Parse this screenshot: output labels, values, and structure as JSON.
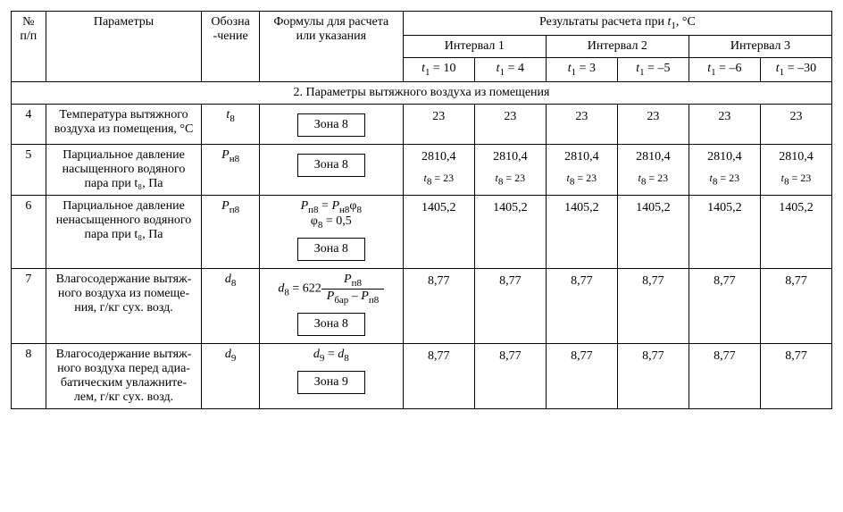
{
  "header": {
    "col_num": "№ п/п",
    "col_param": "Параметры",
    "col_symbol": "Обозна\n-чение",
    "col_formula": "Формулы для расчета или указания",
    "col_results_title": "Результаты расчета при t₁, °C",
    "intervals": [
      "Интервал 1",
      "Интервал 2",
      "Интервал 3"
    ],
    "t_labels": [
      "t₁ = 10",
      "t₁ = 4",
      "t₁ = 3",
      "t₁ = –5",
      "t₁ = –6",
      "t₁ = –30"
    ]
  },
  "section_title": "2. Параметры вытяжного воздуха из помещения",
  "zone_label": "Зона ",
  "rows": [
    {
      "n": "4",
      "param": "Температура вытяжного воздуха из помещения, °C",
      "symbol_html": "<i>t</i><span class=\"sub\">8</span>",
      "formula_text": "",
      "zone": "8",
      "values": [
        "23",
        "23",
        "23",
        "23",
        "23",
        "23"
      ],
      "sub_values": [
        "",
        "",
        "",
        "",
        "",
        ""
      ]
    },
    {
      "n": "5",
      "param": "Парциальное давление насыщенного водяного пара при t₈, Па",
      "symbol_html": "<i>P</i><span class=\"sub\">н8</span>",
      "formula_text": "",
      "zone": "8",
      "values": [
        "2810,4",
        "2810,4",
        "2810,4",
        "2810,4",
        "2810,4",
        "2810,4"
      ],
      "sub_values": [
        "t₈ = 23",
        "t₈ = 23",
        "t₈ = 23",
        "t₈ = 23",
        "t₈ = 23",
        "t₈ = 23"
      ]
    },
    {
      "n": "6",
      "param": "Парциальное давление ненасыщенного водяного пара при t₈, Па",
      "symbol_html": "<i>P</i><span class=\"sub\">п8</span>",
      "formula_text": "<i>P</i><span class=\"sub\">п8</span> = <i>P</i><span class=\"sub\">н8</span>φ<span class=\"sub\">8</span><br>φ<span class=\"sub\">8</span> = 0,5",
      "zone": "8",
      "values": [
        "1405,2",
        "1405,2",
        "1405,2",
        "1405,2",
        "1405,2",
        "1405,2"
      ],
      "sub_values": [
        "",
        "",
        "",
        "",
        "",
        ""
      ]
    },
    {
      "n": "7",
      "param": "Влагосодержание вытяж­ного воздуха из помеще­ния, г/кг сух. возд.",
      "symbol_html": "<i>d</i><span class=\"sub\">8</span>",
      "formula_text": "",
      "fraction": {
        "prefix": "<i>d</i><span class=\"sub\">8</span> = 622",
        "num": "<i>P</i><span class=\"sub\">п8</span>",
        "den": "<i>P</i><span class=\"sub\">бар</span> – <i>P</i><span class=\"sub\">п8</span>"
      },
      "zone": "8",
      "values": [
        "8,77",
        "8,77",
        "8,77",
        "8,77",
        "8,77",
        "8,77"
      ],
      "sub_values": [
        "",
        "",
        "",
        "",
        "",
        ""
      ]
    },
    {
      "n": "8",
      "param": "Влагосодержание вытяж­ного воздуха перед адиа­батическим увлажните­лем, г/кг сух. возд.",
      "symbol_html": "<i>d</i><span class=\"sub\">9</span>",
      "formula_text": "<i>d</i><span class=\"sub\">9</span> = <i>d</i><span class=\"sub\">8</span>",
      "zone": "9",
      "values": [
        "8,77",
        "8,77",
        "8,77",
        "8,77",
        "8,77",
        "8,77"
      ],
      "sub_values": [
        "",
        "",
        "",
        "",
        "",
        ""
      ]
    }
  ]
}
